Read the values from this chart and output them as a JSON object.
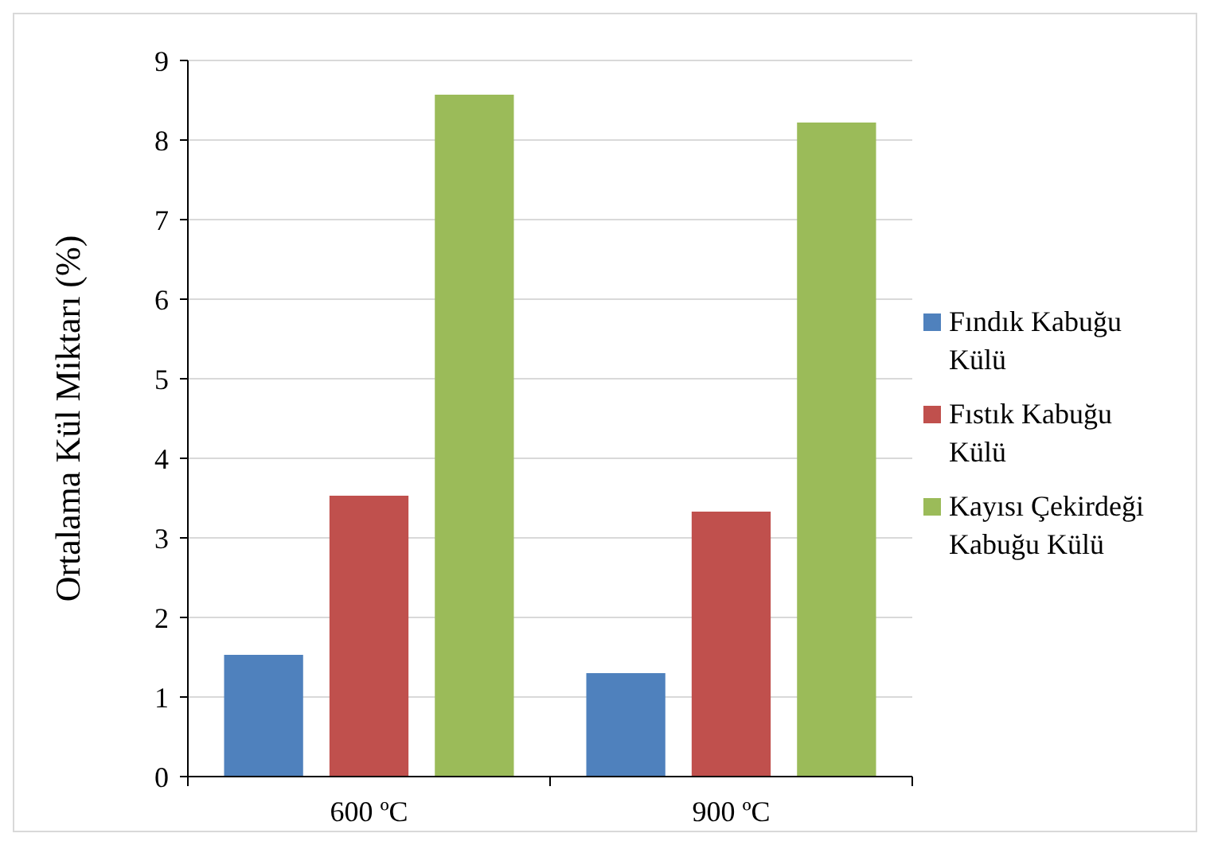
{
  "chart_data": {
    "type": "bar",
    "ylabel": "Ortalama Kül Miktarı (%)",
    "categories": [
      "600 ºC",
      "900 ºC"
    ],
    "series": [
      {
        "name": "Fındık Kabuğu Külü",
        "color": "#4f81bd",
        "values": [
          1.53,
          1.3
        ]
      },
      {
        "name": "Fıstık Kabuğu Külü",
        "color": "#c0504d",
        "values": [
          3.53,
          3.33
        ]
      },
      {
        "name": "Kayısı Çekirdeği Kabuğu Külü",
        "color": "#9bbb59",
        "values": [
          8.57,
          8.22
        ]
      }
    ],
    "ylim": [
      0,
      9
    ],
    "yticks": [
      0,
      1,
      2,
      3,
      4,
      5,
      6,
      7,
      8,
      9
    ],
    "grid": "y",
    "legend": "right"
  }
}
